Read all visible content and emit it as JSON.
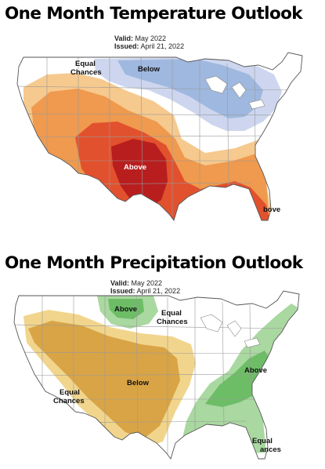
{
  "temperature": {
    "title": "One Month Temperature Outlook",
    "valid_label": "Valid:",
    "valid_value": "May 2022",
    "issued_label": "Issued:",
    "issued_value": "April 21, 2022",
    "labels": {
      "equal_1": "Equal",
      "equal_2": "Chances",
      "below": "Below",
      "above": "Above",
      "above_florida": "bove"
    },
    "colors": {
      "below_light": "#cdd6ee",
      "below_mid": "#9fb8df",
      "above_light": "#f6c98e",
      "above_mid": "#ef9a4e",
      "above_strong": "#e2512d",
      "above_peak": "#b81e1e"
    }
  },
  "precipitation": {
    "title": "One Month Precipitation Outlook",
    "valid_label": "Valid:",
    "valid_value": "May 2022",
    "issued_label": "Issued:",
    "issued_value": "April 21, 2022",
    "labels": {
      "above_north": "Above",
      "equal_mid_1": "Equal",
      "equal_mid_2": "Chances",
      "below": "Below",
      "equal_west_1": "Equal",
      "equal_west_2": "Chances",
      "above_east": "Above",
      "equal_se_1": "Equal",
      "equal_se_2": "ances"
    },
    "colors": {
      "below_light": "#f1d58c",
      "below_mid": "#d9a446",
      "above_light": "#a9d8a0",
      "above_mid": "#6dbd66"
    }
  }
}
